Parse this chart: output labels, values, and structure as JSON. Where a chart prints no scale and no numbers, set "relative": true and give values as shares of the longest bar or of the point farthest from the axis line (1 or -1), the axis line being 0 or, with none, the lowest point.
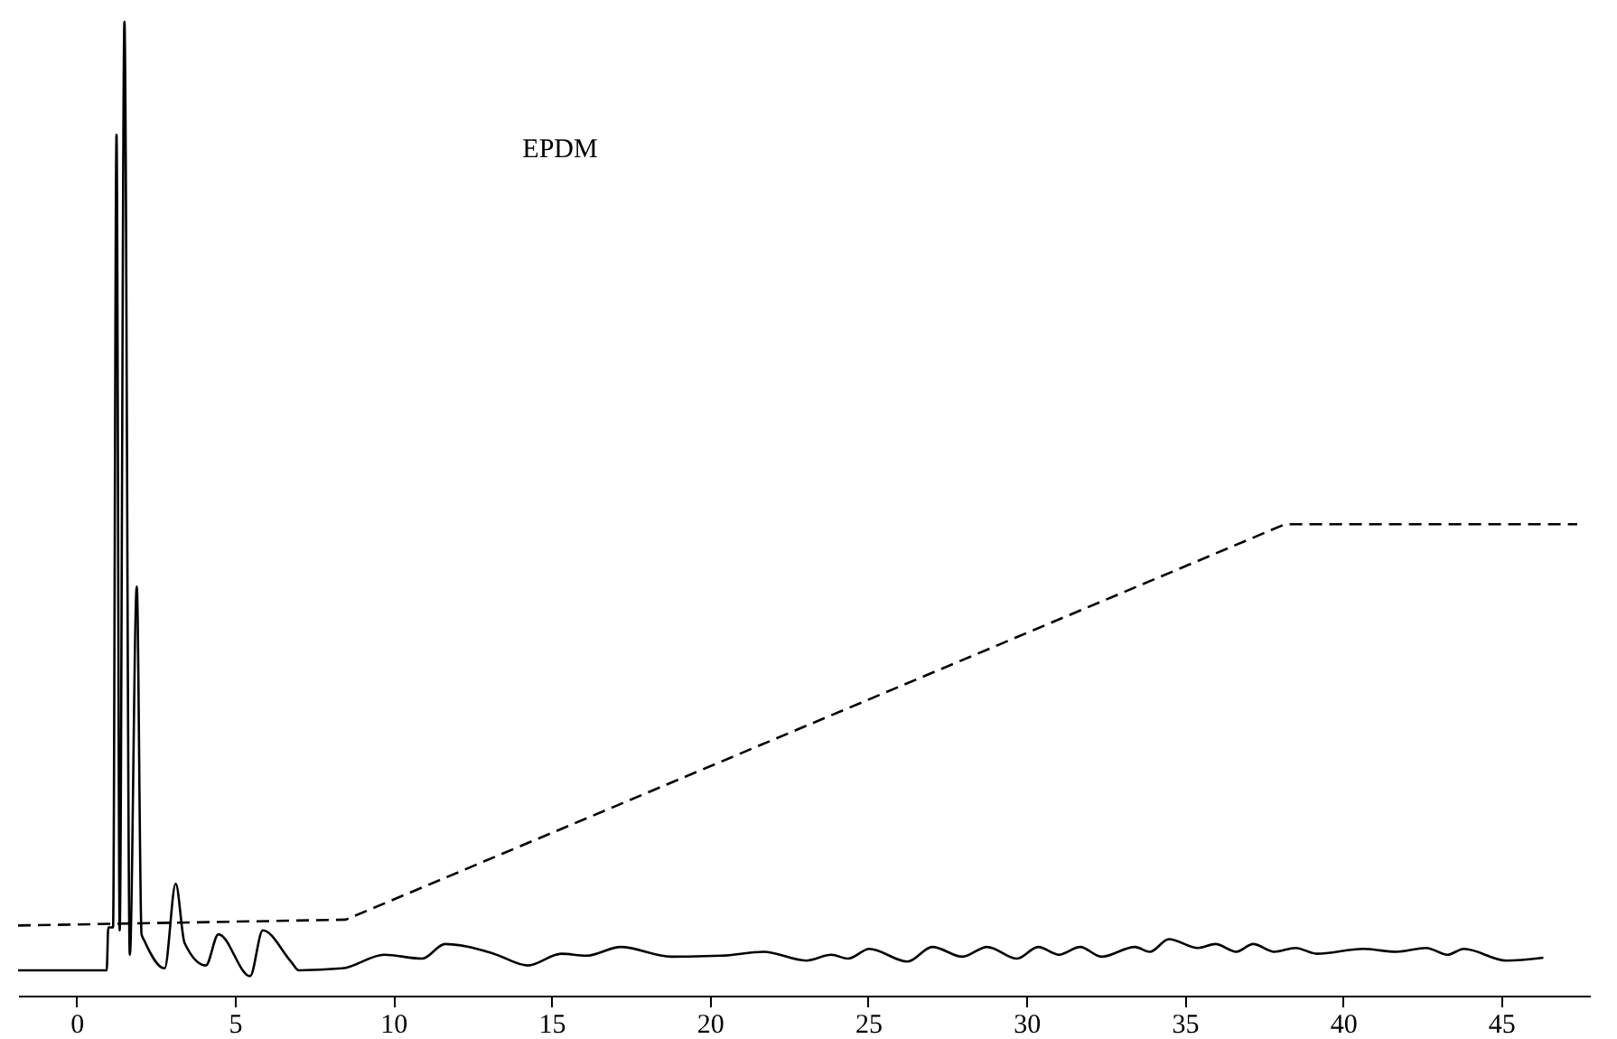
{
  "chart_data": {
    "type": "line",
    "relative": true,
    "annotations": [
      "EPDM"
    ],
    "xlim": [
      -1.85,
      47.8
    ],
    "xticks": [
      0,
      5,
      10,
      15,
      20,
      25,
      30,
      35,
      40,
      45
    ],
    "tick_labels": "x",
    "series": [
      {
        "color": "#000000",
        "line_style": "solid",
        "x": [
          -1.85,
          0.95,
          1.0,
          1.15,
          1.26,
          1.36,
          1.51,
          1.68,
          1.9,
          2.05,
          2.13,
          2.78,
          3.13,
          3.41,
          4.08,
          4.48,
          5.48,
          5.88,
          6.77,
          7.02,
          8.39,
          9.72,
          10.91,
          11.64,
          13.18,
          14.25,
          15.31,
          16.1,
          17.18,
          18.78,
          20.37,
          21.7,
          23.04,
          23.84,
          24.37,
          25.04,
          26.24,
          27.03,
          27.98,
          28.76,
          29.71,
          30.37,
          31.03,
          31.7,
          32.37,
          33.43,
          33.9,
          34.5,
          35.42,
          35.97,
          36.63,
          37.16,
          37.83,
          38.5,
          39.17,
          40.63,
          41.69,
          42.63,
          43.3,
          43.82,
          45.16,
          46.33
        ],
        "values": [
          0.026,
          0.026,
          0.07,
          0.07,
          0.884,
          0.067,
          1.0,
          0.042,
          0.42,
          0.063,
          0.057,
          0.028,
          0.115,
          0.054,
          0.031,
          0.063,
          0.02,
          0.067,
          0.035,
          0.026,
          0.028,
          0.042,
          0.038,
          0.053,
          0.043,
          0.031,
          0.043,
          0.041,
          0.05,
          0.04,
          0.041,
          0.045,
          0.036,
          0.042,
          0.038,
          0.048,
          0.035,
          0.05,
          0.04,
          0.05,
          0.038,
          0.05,
          0.042,
          0.05,
          0.04,
          0.05,
          0.045,
          0.058,
          0.049,
          0.053,
          0.045,
          0.053,
          0.045,
          0.049,
          0.043,
          0.048,
          0.045,
          0.049,
          0.042,
          0.048,
          0.036,
          0.039
        ]
      },
      {
        "color": "#000000",
        "line_style": "dashed",
        "x": [
          -1.85,
          8.5,
          38.17,
          47.4
        ],
        "values": [
          0.072,
          0.078,
          0.484,
          0.484
        ]
      }
    ]
  }
}
